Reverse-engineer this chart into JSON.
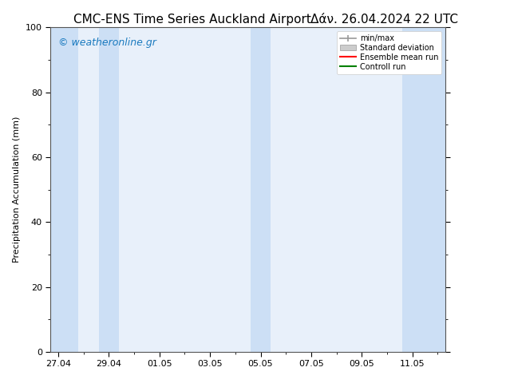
{
  "title_left": "CMC-ENS Time Series Auckland Airport",
  "title_right": "Δάν. 26.04.2024 22 UTC",
  "ylabel": "Precipitation Accumulation (mm)",
  "watermark": "© weatheronline.gr",
  "watermark_color": "#1a7abf",
  "ylim": [
    0,
    100
  ],
  "yticks": [
    0,
    20,
    40,
    60,
    80,
    100
  ],
  "xtick_labels": [
    "27.04",
    "29.04",
    "01.05",
    "03.05",
    "05.05",
    "07.05",
    "09.05",
    "11.05"
  ],
  "bg_color": "#ffffff",
  "plot_bg_color": "#e8f0fa",
  "band_color": "#ccdff5",
  "legend_entries": [
    {
      "label": "min/max",
      "color": "#aaaaaa",
      "type": "errorbar"
    },
    {
      "label": "Standard deviation",
      "color": "#cccccc",
      "type": "fill"
    },
    {
      "label": "Ensemble mean run",
      "color": "#ff0000",
      "type": "line"
    },
    {
      "label": "Controll run",
      "color": "#008000",
      "type": "line"
    }
  ],
  "title_fontsize": 11,
  "axis_fontsize": 8,
  "tick_fontsize": 8,
  "watermark_fontsize": 9
}
